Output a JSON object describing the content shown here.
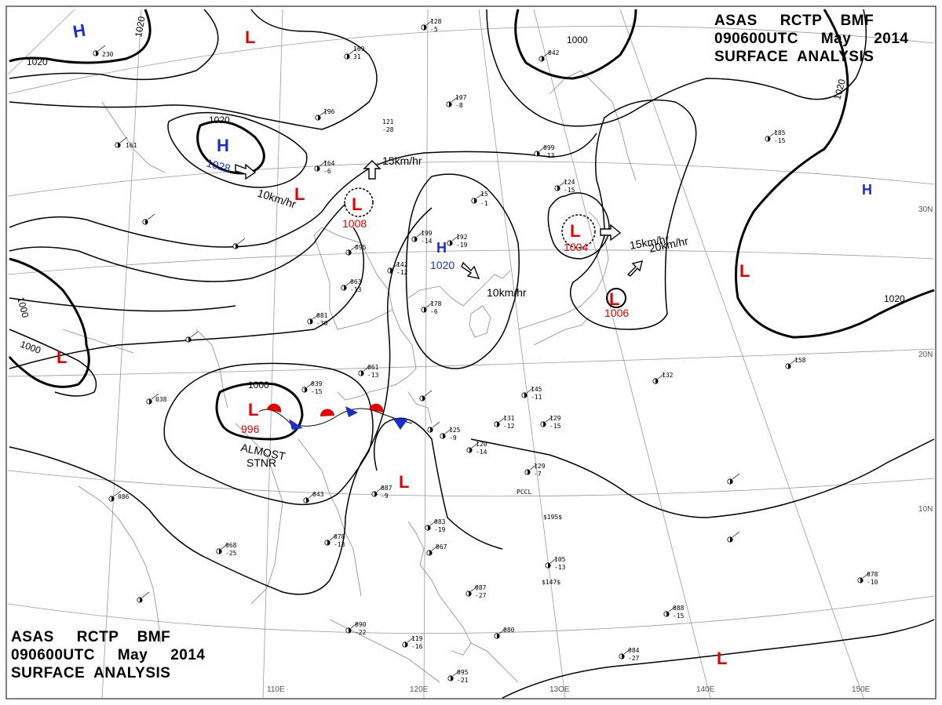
{
  "title": {
    "line1": [
      "ASAS",
      "RCTP",
      "BMF"
    ],
    "line2": [
      "090600UTC",
      "May",
      "2014"
    ],
    "line3": "SURFACE  ANALYSIS"
  },
  "colors": {
    "high": "#1a2ecc",
    "low": "#e60000",
    "isobar": "#000000",
    "coast": "#8a8a8a",
    "grid": "#9a9a9a",
    "warm_front": "#e60000",
    "cold_front": "#1a2ecc"
  },
  "grid_labels": {
    "lon": [
      "110E",
      "120E",
      "13OE",
      "140E",
      "150E"
    ],
    "lat": [
      "30N",
      "20N",
      "10N"
    ]
  },
  "isobars": [
    "1020",
    "1020",
    "1020",
    "1020",
    "1020",
    "1000",
    "1000",
    "1000",
    "1000"
  ],
  "pressure_systems": [
    {
      "type": "H",
      "value": ""
    },
    {
      "type": "L",
      "value": ""
    },
    {
      "type": "H",
      "value": "1028"
    },
    {
      "type": "L",
      "value": ""
    },
    {
      "type": "L",
      "value": "1008"
    },
    {
      "type": "H",
      "value": "1020"
    },
    {
      "type": "L",
      "value": "1004"
    },
    {
      "type": "L",
      "value": "1006"
    },
    {
      "type": "H",
      "value": ""
    },
    {
      "type": "L",
      "value": ""
    },
    {
      "type": "L",
      "value": ""
    },
    {
      "type": "L",
      "value": "996"
    },
    {
      "type": "L",
      "value": ""
    },
    {
      "type": "L",
      "value": ""
    }
  ],
  "motions": [
    "15km/hr",
    "10km/hr",
    "10km/hr",
    "15km/hr",
    "20km/hr"
  ],
  "front_label": [
    "ALMOST",
    "STNR"
  ],
  "station_obs": [
    "230",
    "161",
    "169",
    "31",
    "196",
    "121",
    "-28",
    "128",
    "-5",
    "164",
    "-6",
    "095",
    "199",
    "-14",
    "192",
    "-19",
    "107",
    "-8",
    "15",
    "-1",
    "142",
    "-12",
    "124",
    "-15",
    "081",
    "-30",
    "178",
    "-6",
    "063",
    "-13",
    "061",
    "-13",
    "039",
    "-15",
    "087",
    "-9",
    "086",
    "038",
    "125",
    "-9",
    "120",
    "-14",
    "145",
    "-11",
    "131",
    "-12",
    "129",
    "-15",
    "129",
    "-7",
    "043",
    "068",
    "-25",
    "078",
    "-13",
    "083",
    "-19",
    "067",
    "105",
    "-13",
    "095",
    "-21",
    "090",
    "-22",
    "119",
    "-16",
    "080",
    "084",
    "-27",
    "088",
    "-15",
    "078",
    "-10",
    "158",
    "132",
    "185",
    "-15",
    "099",
    "-13",
    "087",
    "-27",
    "042",
    "PCCL",
    "$195$",
    "$147$"
  ]
}
